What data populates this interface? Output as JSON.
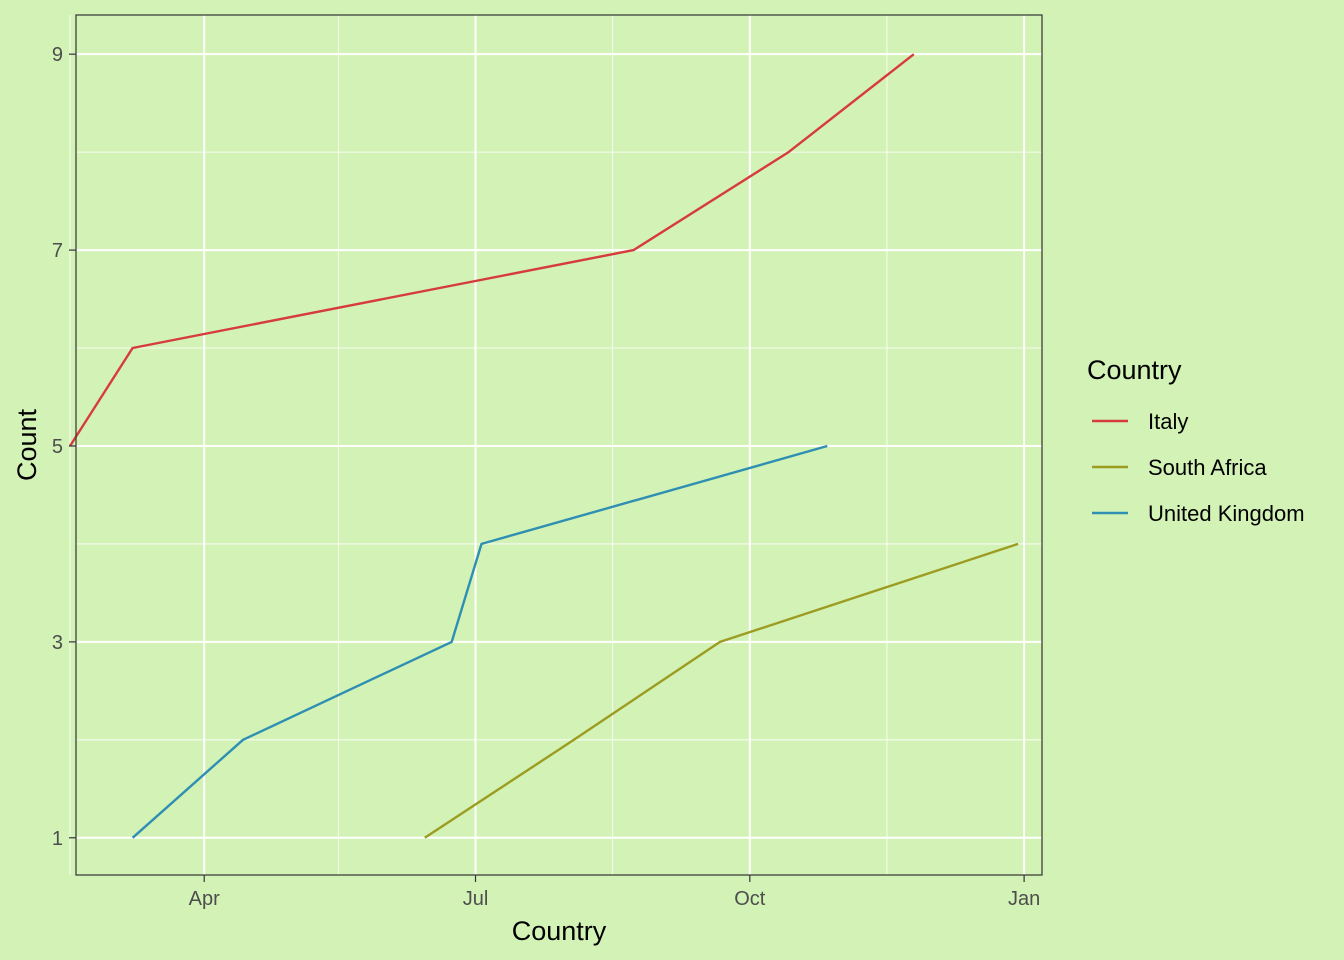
{
  "chart_data": {
    "type": "line",
    "xlabel": "Country",
    "ylabel": "Count",
    "x_axis": {
      "type": "date",
      "range": [
        "2021-02-17",
        "2022-01-07"
      ],
      "ticks": [
        {
          "date": "2021-04-01",
          "label": "Apr"
        },
        {
          "date": "2021-07-01",
          "label": "Jul"
        },
        {
          "date": "2021-10-01",
          "label": "Oct"
        },
        {
          "date": "2022-01-01",
          "label": "Jan"
        }
      ],
      "minor_ticks": [
        "2021-02-15",
        "2021-05-16",
        "2021-08-16",
        "2021-11-16"
      ]
    },
    "y_axis": {
      "range": [
        0.62,
        9.4
      ],
      "ticks": [
        1,
        3,
        5,
        7,
        9
      ],
      "minor_ticks": [
        2,
        4,
        6,
        8
      ]
    },
    "grid": true,
    "legend": {
      "title": "Country",
      "position": "right",
      "entries": [
        "Italy",
        "South Africa",
        "United Kingdom"
      ]
    },
    "series": [
      {
        "name": "Italy",
        "color": "#d63c3c",
        "points": [
          {
            "x": "2021-02-15",
            "y": 5
          },
          {
            "x": "2021-03-08",
            "y": 6
          },
          {
            "x": "2021-08-23",
            "y": 7
          },
          {
            "x": "2021-10-14",
            "y": 8
          },
          {
            "x": "2021-11-25",
            "y": 9
          }
        ]
      },
      {
        "name": "South Africa",
        "color": "#9c9c21",
        "points": [
          {
            "x": "2021-06-14",
            "y": 1
          },
          {
            "x": "2021-08-03",
            "y": 2
          },
          {
            "x": "2021-09-21",
            "y": 3
          },
          {
            "x": "2021-12-30",
            "y": 4
          }
        ]
      },
      {
        "name": "United Kingdom",
        "color": "#2f8fb3",
        "points": [
          {
            "x": "2021-03-08",
            "y": 1
          },
          {
            "x": "2021-04-14",
            "y": 2
          },
          {
            "x": "2021-06-23",
            "y": 3
          },
          {
            "x": "2021-07-03",
            "y": 4
          },
          {
            "x": "2021-10-27",
            "y": 5
          }
        ]
      }
    ]
  }
}
